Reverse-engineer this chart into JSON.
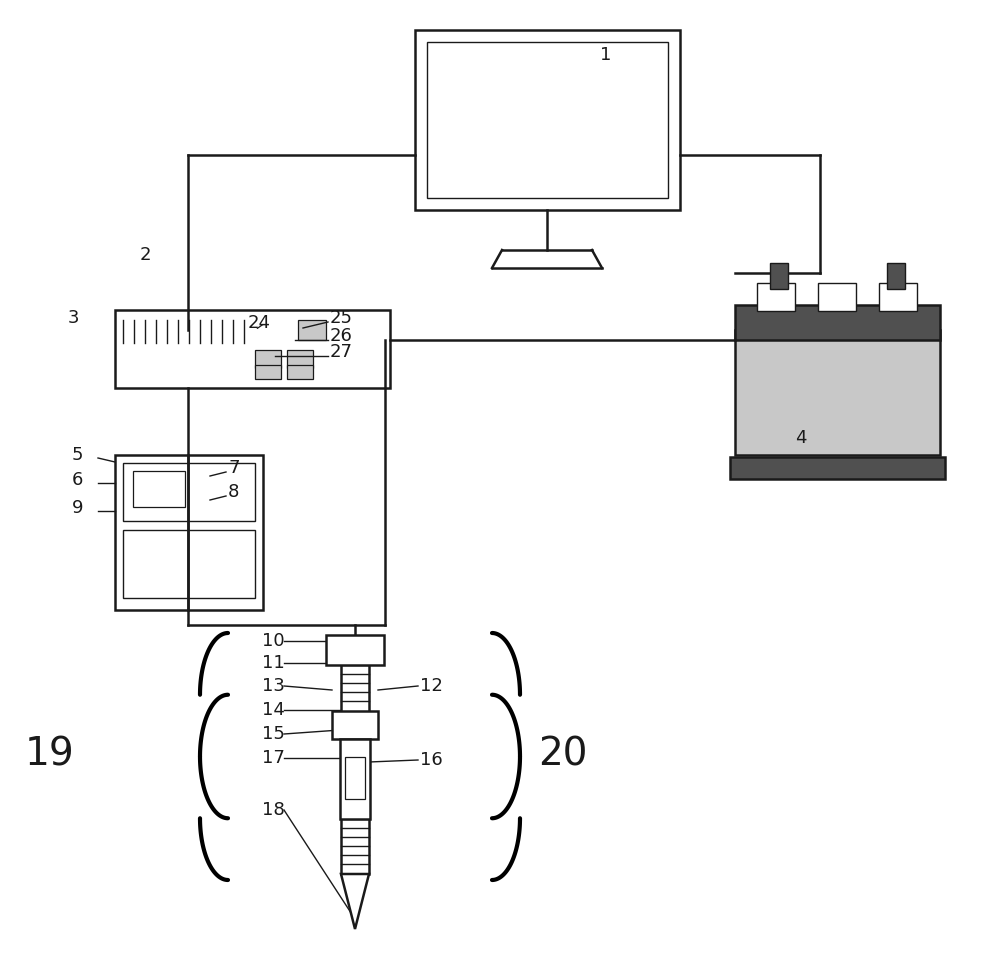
{
  "bg": "#ffffff",
  "lc": "#1a1a1a",
  "gray_light": "#c8c8c8",
  "gray_dark": "#505050",
  "gray_mid": "#888888"
}
